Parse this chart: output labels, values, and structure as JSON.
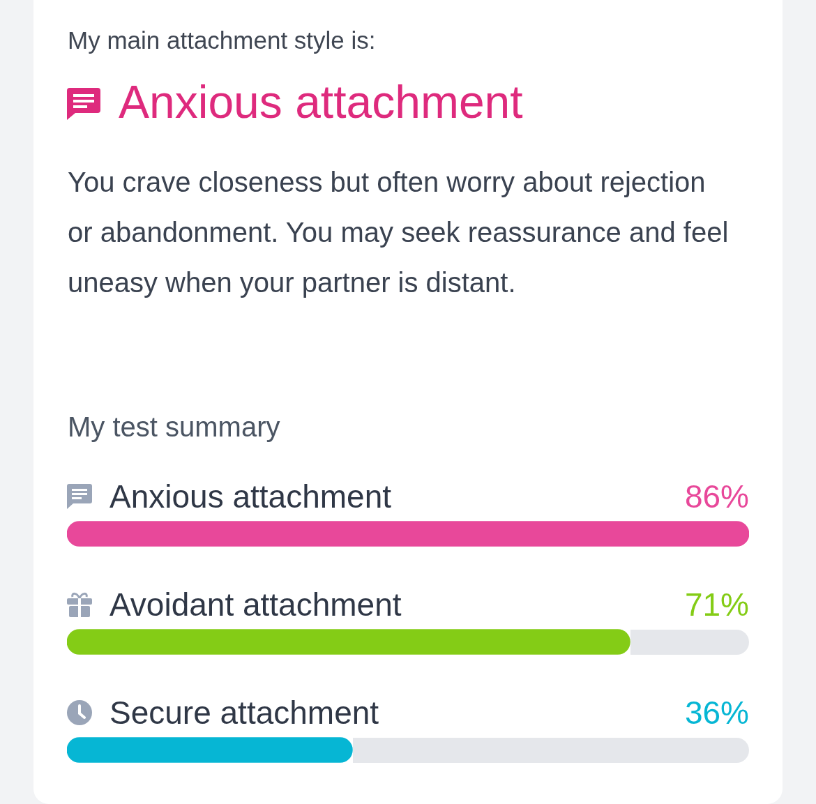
{
  "chart_data": {
    "type": "bar",
    "orientation": "horizontal",
    "title": "My test summary",
    "annotations": [
      "My main attachment style is:",
      "Anxious attachment",
      "You crave closeness but often worry about rejection or abandonment. You may seek reassurance and feel uneasy when your partner is distant."
    ],
    "categories": [
      "Anxious attachment",
      "Avoidant attachment",
      "Secure attachment"
    ],
    "values": [
      86,
      71,
      36
    ],
    "colors": [
      "#e8489a",
      "#84cc16",
      "#06b6d4"
    ],
    "value_labels": [
      "86%",
      "71%",
      "36%"
    ],
    "legend": false
  }
}
